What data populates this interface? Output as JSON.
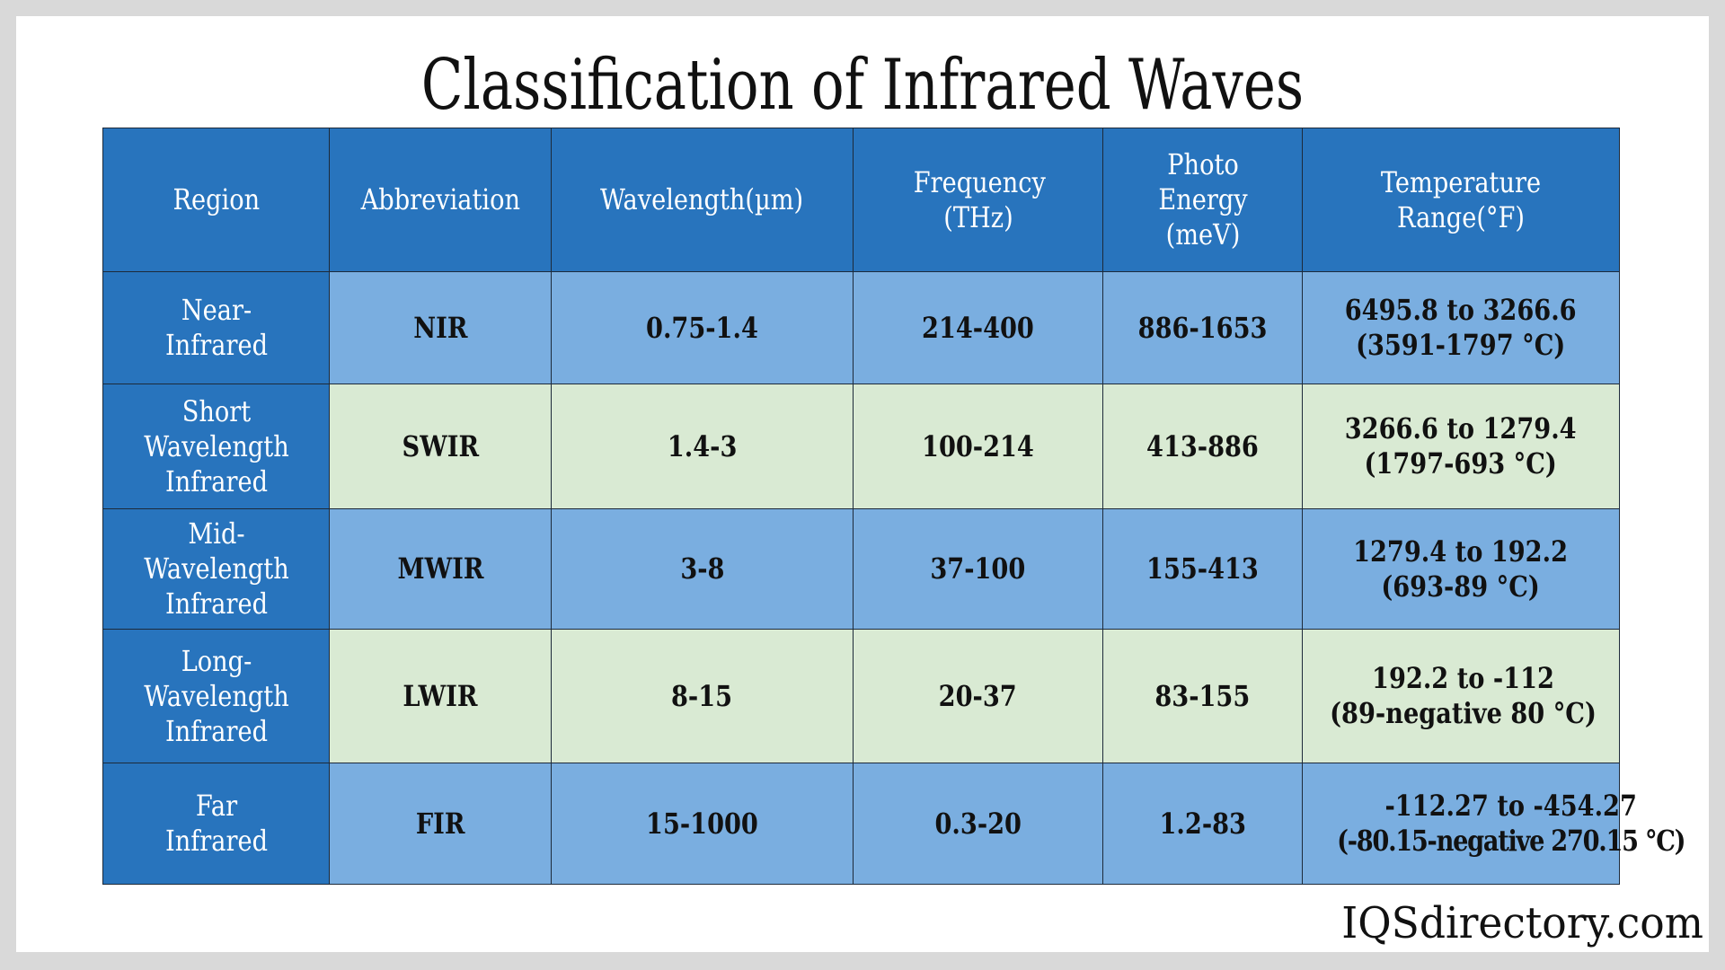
{
  "title": "Classification of Infrared Waves",
  "headers": [
    "Region",
    "Abbreviation",
    "Wavelength(µm)",
    "Frequency (THz)",
    "Photo Energy (meV)",
    "Temperature Range(°F)"
  ],
  "rows": [
    {
      "region": "Near-Infrared",
      "abbr": "NIR",
      "wavelength": "0.75-1.4",
      "frequency": "214-400",
      "energy": "886-1653",
      "temp_f": "6495.8 to 3266.6",
      "temp_c": "(3591-1797 °C)"
    },
    {
      "region": "Short Wavelength Infrared",
      "abbr": "SWIR",
      "wavelength": "1.4-3",
      "frequency": "100-214",
      "energy": "413-886",
      "temp_f": "3266.6 to 1279.4",
      "temp_c": "(1797-693 °C)"
    },
    {
      "region": "Mid-Wavelength Infrared",
      "abbr": "MWIR",
      "wavelength": "3-8",
      "frequency": "37-100",
      "energy": "155-413",
      "temp_f": "1279.4 to 192.2",
      "temp_c": "(693-89 °C)"
    },
    {
      "region": "Long-Wavelength Infrared",
      "abbr": "LWIR",
      "wavelength": "8-15",
      "frequency": "20-37",
      "energy": "83-155",
      "temp_f": "192.2 to -112",
      "temp_c": "(89-negative 80 °C)"
    },
    {
      "region": "Far Infrared",
      "abbr": "FIR",
      "wavelength": "15-1000",
      "frequency": "0.3-20",
      "energy": "1.2-83",
      "temp_f": "-112.27 to -454.27",
      "temp_c": "(-80.15-negative 270.15 °C)"
    }
  ],
  "footer_logo": "IQSdirectory.com",
  "colors": {
    "header": "#2874bd",
    "row_blue": "#7aaee0",
    "row_green": "#d9ead3",
    "background": "#d9d9d9"
  }
}
